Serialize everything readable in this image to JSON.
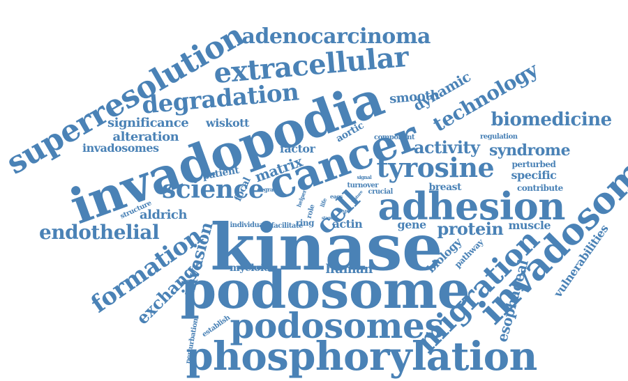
{
  "colors": {
    "word": "#4a82b6",
    "background": "#ffffff"
  },
  "words": [
    "kinase",
    "invadopodia",
    "podosome",
    "phosphorylation",
    "cancer",
    "podosomes",
    "adhesion",
    "superresolution",
    "invadosome",
    "extracellular",
    "migration",
    "degradation",
    "adenocarcinoma",
    "tyrosine",
    "science",
    "formation",
    "technology",
    "cell",
    "endothelial",
    "biomedicine",
    "syndrome",
    "exchange",
    "invasion",
    "dynamic",
    "protein",
    "activity",
    "esophageal",
    "vulnerabilities",
    "significance",
    "alteration",
    "invadosomes",
    "wiskott",
    "smooth",
    "matrix",
    "aldrich",
    "focal",
    "aortic",
    "factor",
    "patient",
    "biology",
    "pathway",
    "human",
    "myeloid",
    "muscle",
    "gene",
    "actin",
    "breast",
    "specific",
    "perturbed",
    "regulation",
    "contribute",
    "component",
    "structure",
    "perturbation",
    "establish",
    "individual",
    "facilitate",
    "ring",
    "role",
    "degrade",
    "helper",
    "life",
    "eacs",
    "turnover",
    "crucial",
    "signal",
    "type",
    "stage",
    "feature"
  ]
}
